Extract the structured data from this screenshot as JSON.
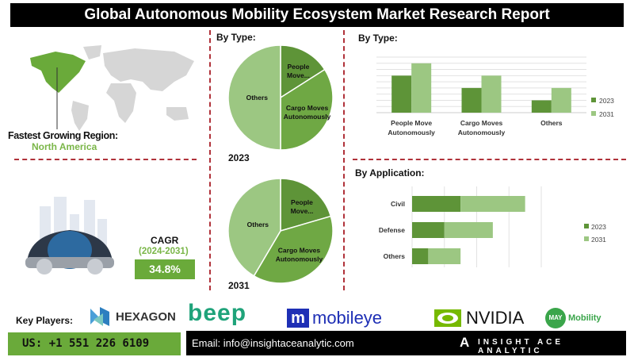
{
  "title": "Global Autonomous Mobility Ecosystem Market Research Report",
  "region": {
    "label": "Fastest Growing Region:",
    "value": "North America"
  },
  "cagr": {
    "label": "CAGR",
    "period": "(2024-2031)",
    "value": "34.8%"
  },
  "colors": {
    "accent": "#6aaa3a",
    "divider": "#b0323a",
    "dark_green": "#5e9438",
    "mid_green": "#6fa844",
    "light_green": "#9cc782"
  },
  "chart_data": [
    {
      "type": "pie",
      "title": "By Type:",
      "caption": "2023",
      "labels": [
        "People Move...",
        "Cargo Moves Autonomously",
        "Others"
      ],
      "values": [
        16,
        34,
        50
      ]
    },
    {
      "type": "pie",
      "caption": "2031",
      "labels": [
        "People Move...",
        "Cargo Moves Autonomously",
        "Others"
      ],
      "values": [
        20.5,
        38,
        41.5
      ]
    },
    {
      "type": "bar",
      "title": "By Type:",
      "categories": [
        "People Move Autonomously",
        "Cargo Moves Autonomously",
        "Others"
      ],
      "series": [
        {
          "name": "2023",
          "values": [
            6,
            4,
            2
          ]
        },
        {
          "name": "2031",
          "values": [
            8,
            6,
            4
          ]
        }
      ],
      "ylim": [
        0,
        9
      ],
      "grid": true,
      "legend": "right"
    },
    {
      "type": "bar",
      "orientation": "horizontal",
      "stacked": true,
      "title": "By Application:",
      "categories": [
        "Civil",
        "Defense",
        "Others"
      ],
      "series": [
        {
          "name": "2023",
          "values": [
            1.5,
            1,
            0.5
          ]
        },
        {
          "name": "2031",
          "values": [
            2,
            1.5,
            1
          ]
        }
      ],
      "xlim": [
        0,
        4
      ],
      "grid": true,
      "legend": "right"
    }
  ],
  "footer": {
    "key_players_label": "Key Players:",
    "players": [
      "HEXAGON",
      "beep",
      "mobileye",
      "NVIDIA",
      "Mobility"
    ],
    "phone": "US: +1 551 226 6109",
    "email": "Email: info@insightaceanalytic.com",
    "brand": "INSIGHT ACE ANALYTIC"
  }
}
